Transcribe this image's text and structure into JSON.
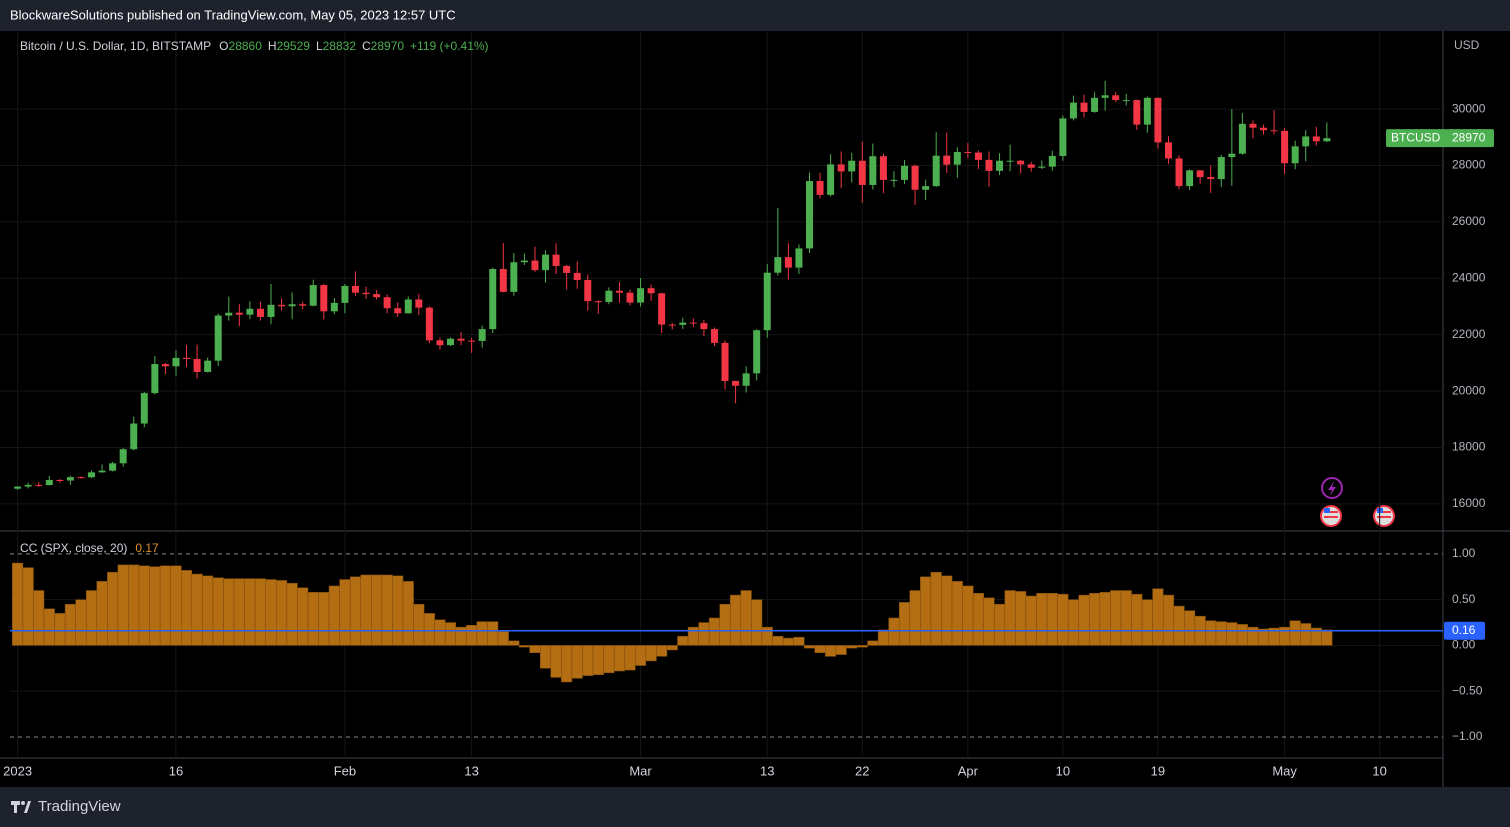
{
  "publisher": "BlockwareSolutions published on TradingView.com, May 05, 2023 12:57 UTC",
  "brand": "TradingView",
  "chart_data": [
    {
      "type": "candlestick",
      "title": "Bitcoin / U.S. Dollar, 1D, BITSTAMP",
      "currency": "USD",
      "symbol": "BTCUSD",
      "legend": [
        {
          "label": "O",
          "value": 28860
        },
        {
          "label": "H",
          "value": 29529
        },
        {
          "label": "L",
          "value": 28832
        },
        {
          "label": "C",
          "value": 28970
        }
      ],
      "change": "+119 (+0.41%)",
      "up_color": "#4caf50",
      "down_color": "#f23645",
      "ylim": [
        15040,
        32770
      ],
      "yticks": [
        16000,
        18000,
        20000,
        22000,
        24000,
        26000,
        28000,
        30000
      ],
      "xlim": [
        -0.72,
        135
      ],
      "xticks": [
        {
          "value": 0,
          "label": "2023"
        },
        {
          "value": 15,
          "label": "16"
        },
        {
          "value": 31,
          "label": "Feb"
        },
        {
          "value": 43,
          "label": "13"
        },
        {
          "value": 59,
          "label": "Mar"
        },
        {
          "value": 71,
          "label": "13"
        },
        {
          "value": 80,
          "label": "22"
        },
        {
          "value": 90,
          "label": "Apr"
        },
        {
          "value": 99,
          "label": "10"
        },
        {
          "value": 108,
          "label": "19"
        },
        {
          "value": 120,
          "label": "May"
        },
        {
          "value": 129,
          "label": "10"
        }
      ],
      "grid": true,
      "ohlc": [
        [
          16540,
          16630,
          16500,
          16615
        ],
        [
          16615,
          16760,
          16550,
          16675
        ],
        [
          16675,
          16780,
          16600,
          16670
        ],
        [
          16670,
          16990,
          16650,
          16850
        ],
        [
          16850,
          16880,
          16750,
          16830
        ],
        [
          16830,
          17000,
          16680,
          16950
        ],
        [
          16950,
          16980,
          16900,
          16945
        ],
        [
          16945,
          17180,
          16910,
          17120
        ],
        [
          17120,
          17400,
          17100,
          17180
        ],
        [
          17180,
          17490,
          17150,
          17440
        ],
        [
          17440,
          17990,
          17320,
          17940
        ],
        [
          17940,
          19100,
          17900,
          18850
        ],
        [
          18850,
          19970,
          18720,
          19930
        ],
        [
          19930,
          21250,
          19880,
          20960
        ],
        [
          20960,
          21000,
          20600,
          20880
        ],
        [
          20880,
          21450,
          20550,
          21180
        ],
        [
          21180,
          21640,
          20850,
          21140
        ],
        [
          21140,
          21650,
          20450,
          20680
        ],
        [
          20680,
          21190,
          20660,
          21080
        ],
        [
          21080,
          22750,
          20890,
          22680
        ],
        [
          22680,
          23350,
          22500,
          22780
        ],
        [
          22780,
          23080,
          22300,
          22710
        ],
        [
          22710,
          23180,
          22550,
          22920
        ],
        [
          22920,
          23170,
          22500,
          22630
        ],
        [
          22630,
          23800,
          22370,
          23060
        ],
        [
          23060,
          23290,
          22860,
          23010
        ],
        [
          23010,
          23500,
          22550,
          23080
        ],
        [
          23080,
          23170,
          22900,
          23030
        ],
        [
          23030,
          23950,
          23000,
          23760
        ],
        [
          23760,
          23800,
          22540,
          22830
        ],
        [
          22830,
          23300,
          22730,
          23130
        ],
        [
          23130,
          23800,
          22760,
          23730
        ],
        [
          23730,
          24250,
          23380,
          23490
        ],
        [
          23490,
          23700,
          23270,
          23440
        ],
        [
          23440,
          23580,
          23250,
          23330
        ],
        [
          23330,
          23430,
          22760,
          22940
        ],
        [
          22940,
          23150,
          22630,
          22760
        ],
        [
          22760,
          23360,
          22750,
          23250
        ],
        [
          23250,
          23450,
          22700,
          22960
        ],
        [
          22960,
          23000,
          21700,
          21800
        ],
        [
          21800,
          21900,
          21470,
          21630
        ],
        [
          21630,
          21900,
          21600,
          21860
        ],
        [
          21860,
          22090,
          21630,
          21790
        ],
        [
          21790,
          21890,
          21360,
          21780
        ],
        [
          21780,
          22320,
          21540,
          22200
        ],
        [
          22200,
          24380,
          22060,
          24330
        ],
        [
          24330,
          25250,
          23500,
          23520
        ],
        [
          23520,
          24900,
          23380,
          24570
        ],
        [
          24570,
          24880,
          24470,
          24630
        ],
        [
          24630,
          25120,
          24230,
          24290
        ],
        [
          24290,
          25000,
          23850,
          24840
        ],
        [
          24840,
          25250,
          24150,
          24440
        ],
        [
          24440,
          24480,
          23600,
          24190
        ],
        [
          24190,
          24600,
          23630,
          23940
        ],
        [
          23940,
          24130,
          22850,
          23190
        ],
        [
          23190,
          23220,
          22740,
          23160
        ],
        [
          23160,
          23680,
          23080,
          23560
        ],
        [
          23560,
          23870,
          23130,
          23490
        ],
        [
          23490,
          23600,
          23040,
          23140
        ],
        [
          23140,
          24000,
          23000,
          23650
        ],
        [
          23650,
          23780,
          23200,
          23470
        ],
        [
          23470,
          23480,
          22060,
          22360
        ],
        [
          22360,
          22420,
          22180,
          22350
        ],
        [
          22350,
          22600,
          22200,
          22430
        ],
        [
          22430,
          22580,
          22280,
          22410
        ],
        [
          22410,
          22530,
          21950,
          22200
        ],
        [
          22200,
          22260,
          21600,
          21710
        ],
        [
          21710,
          21800,
          20050,
          20360
        ],
        [
          20360,
          20370,
          19570,
          20190
        ],
        [
          20190,
          20880,
          19950,
          20630
        ],
        [
          20630,
          22200,
          20380,
          22160
        ],
        [
          22160,
          24500,
          21900,
          24200
        ],
        [
          24200,
          26500,
          24100,
          24750
        ],
        [
          24750,
          25250,
          23950,
          24380
        ],
        [
          24380,
          25200,
          24150,
          25060
        ],
        [
          25060,
          27750,
          24900,
          27450
        ],
        [
          27450,
          27740,
          26830,
          26960
        ],
        [
          26960,
          28400,
          26900,
          28040
        ],
        [
          28040,
          28500,
          27200,
          27790
        ],
        [
          27790,
          28450,
          27400,
          28170
        ],
        [
          28170,
          28850,
          26680,
          27310
        ],
        [
          27310,
          28780,
          27150,
          28330
        ],
        [
          28330,
          28420,
          27020,
          27490
        ],
        [
          27490,
          27800,
          27230,
          27490
        ],
        [
          27490,
          28200,
          27350,
          27990
        ],
        [
          27990,
          28030,
          26600,
          27140
        ],
        [
          27140,
          27500,
          26780,
          27270
        ],
        [
          27270,
          29180,
          27240,
          28350
        ],
        [
          28350,
          29170,
          27740,
          28030
        ],
        [
          28030,
          28650,
          27560,
          28480
        ],
        [
          28480,
          28800,
          28270,
          28460
        ],
        [
          28460,
          28530,
          27880,
          28200
        ],
        [
          28200,
          28500,
          27250,
          27810
        ],
        [
          27810,
          28440,
          27660,
          28170
        ],
        [
          28170,
          28740,
          27800,
          28170
        ],
        [
          28170,
          28200,
          27720,
          28040
        ],
        [
          28040,
          28130,
          27780,
          27920
        ],
        [
          27920,
          28180,
          27880,
          27960
        ],
        [
          27960,
          28530,
          27820,
          28340
        ],
        [
          28340,
          29780,
          28170,
          29670
        ],
        [
          29670,
          30480,
          29600,
          30230
        ],
        [
          30230,
          30510,
          29700,
          29900
        ],
        [
          29900,
          30600,
          29870,
          30400
        ],
        [
          30400,
          31000,
          29950,
          30490
        ],
        [
          30490,
          30600,
          30250,
          30320
        ],
        [
          30320,
          30540,
          30130,
          30320
        ],
        [
          30320,
          30340,
          29270,
          29450
        ],
        [
          29450,
          30450,
          29160,
          30400
        ],
        [
          30400,
          30410,
          28600,
          28820
        ],
        [
          28820,
          29040,
          28050,
          28250
        ],
        [
          28250,
          28360,
          27150,
          27270
        ],
        [
          27270,
          27860,
          27130,
          27830
        ],
        [
          27830,
          27830,
          27350,
          27590
        ],
        [
          27590,
          28000,
          27030,
          27520
        ],
        [
          27520,
          28380,
          27240,
          28300
        ],
        [
          28300,
          30000,
          27280,
          28420
        ],
        [
          28420,
          29860,
          28380,
          29480
        ],
        [
          29480,
          29600,
          28970,
          29340
        ],
        [
          29340,
          29450,
          29100,
          29250
        ],
        [
          29250,
          29960,
          29100,
          29230
        ],
        [
          29230,
          29330,
          27700,
          28080
        ],
        [
          28080,
          28880,
          27870,
          28680
        ],
        [
          28680,
          29260,
          28150,
          29030
        ],
        [
          29030,
          29370,
          28700,
          28860
        ],
        [
          28860,
          29529,
          28832,
          28970
        ]
      ]
    },
    {
      "type": "bar",
      "title": "CC (SPX, close, 20)",
      "last": 0.17,
      "color": "#b36d12",
      "line_color": "#b36d12",
      "hline": 0.16,
      "hline_label": "0.16",
      "hline_color": "#2962ff",
      "ylim": [
        -1.23,
        1.25
      ],
      "yticks": [
        {
          "value": 1,
          "label": "1.00"
        },
        {
          "value": 0.5,
          "label": "0.50"
        },
        {
          "value": 0,
          "label": "0.00"
        },
        {
          "value": -0.5,
          "label": "−0.50"
        },
        {
          "value": -1,
          "label": "−1.00"
        }
      ],
      "dashed_levels": [
        1,
        -1
      ],
      "values": [
        0.9,
        0.85,
        0.6,
        0.4,
        0.35,
        0.45,
        0.5,
        0.6,
        0.7,
        0.8,
        0.88,
        0.88,
        0.87,
        0.86,
        0.87,
        0.87,
        0.82,
        0.78,
        0.76,
        0.74,
        0.73,
        0.73,
        0.73,
        0.73,
        0.72,
        0.71,
        0.68,
        0.63,
        0.58,
        0.58,
        0.65,
        0.72,
        0.75,
        0.77,
        0.77,
        0.77,
        0.76,
        0.7,
        0.45,
        0.35,
        0.28,
        0.25,
        0.2,
        0.22,
        0.26,
        0.26,
        0.15,
        0.05,
        -0.02,
        -0.08,
        -0.25,
        -0.35,
        -0.4,
        -0.36,
        -0.33,
        -0.32,
        -0.3,
        -0.28,
        -0.27,
        -0.22,
        -0.17,
        -0.12,
        -0.05,
        0.1,
        0.2,
        0.25,
        0.3,
        0.45,
        0.55,
        0.6,
        0.5,
        0.2,
        0.1,
        0.08,
        0.09,
        -0.03,
        -0.08,
        -0.12,
        -0.1,
        -0.03,
        -0.02,
        0.05,
        0.17,
        0.3,
        0.47,
        0.6,
        0.75,
        0.8,
        0.76,
        0.7,
        0.65,
        0.57,
        0.52,
        0.45,
        0.6,
        0.59,
        0.54,
        0.57,
        0.57,
        0.56,
        0.5,
        0.55,
        0.57,
        0.58,
        0.6,
        0.6,
        0.56,
        0.5,
        0.62,
        0.55,
        0.43,
        0.38,
        0.32,
        0.27,
        0.26,
        0.25,
        0.23,
        0.2,
        0.18,
        0.19,
        0.2,
        0.27,
        0.24,
        0.19,
        0.17
      ]
    }
  ]
}
